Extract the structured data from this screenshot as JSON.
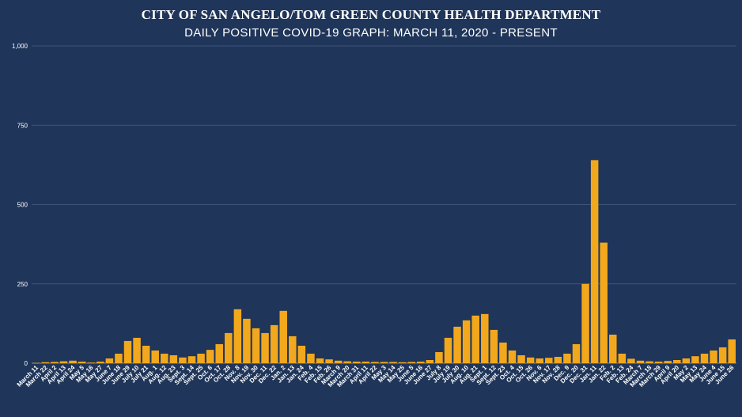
{
  "chart_data": {
    "type": "bar",
    "title": "CITY OF SAN ANGELO/TOM GREEN COUNTY HEALTH DEPARTMENT",
    "subtitle": "DAILY POSITIVE COVID-19 GRAPH: MARCH 11, 2020 - PRESENT",
    "xlabel": "",
    "ylabel": "",
    "ylim": [
      0,
      1000
    ],
    "yticks": [
      0,
      250,
      500,
      750,
      1000
    ],
    "ytick_labels": [
      "0",
      "250",
      "500",
      "750",
      "1,000"
    ],
    "grid": true,
    "legend": "none",
    "bar_color": "#f2a81d",
    "background_color": "#1f3559",
    "categories": [
      "March 11",
      "March 22",
      "April 2",
      "April 13",
      "April 24",
      "May 5",
      "May 16",
      "May 27",
      "June 7",
      "June 18",
      "June 29",
      "July 10",
      "July 21",
      "Aug. 1",
      "Aug. 12",
      "Aug. 23",
      "Sept. 3",
      "Sept. 14",
      "Sept. 25",
      "Oct. 6",
      "Oct. 17",
      "Oct. 28",
      "Nov. 8",
      "Nov. 19",
      "Nov. 30",
      "Dec. 11",
      "Dec. 22",
      "Jan. 2",
      "Jan. 13",
      "Jan. 24",
      "Feb. 4",
      "Feb. 15",
      "Feb. 26",
      "March 9",
      "March 20",
      "March 31",
      "April 11",
      "April 22",
      "May 3",
      "May 14",
      "May 25",
      "June 5",
      "June 16",
      "June 27",
      "July 8",
      "July 19",
      "July 30",
      "Aug. 10",
      "Aug. 21",
      "Sept. 1",
      "Sept. 12",
      "Sept. 23",
      "Oct. 4",
      "Oct. 15",
      "Oct. 26",
      "Nov. 6",
      "Nov. 17",
      "Nov. 28",
      "Dec. 9",
      "Dec. 20",
      "Dec. 31",
      "Jan. 11",
      "Jan. 22",
      "Feb. 2",
      "Feb. 13",
      "Feb. 24",
      "March 7",
      "March 18",
      "March 29",
      "April 9",
      "April 20",
      "May 2",
      "May 13",
      "May 24",
      "June 4",
      "June 15",
      "June 26"
    ],
    "values": [
      1,
      3,
      4,
      6,
      8,
      5,
      2,
      5,
      15,
      30,
      70,
      80,
      55,
      40,
      30,
      25,
      18,
      22,
      30,
      42,
      60,
      95,
      170,
      140,
      110,
      95,
      120,
      165,
      85,
      55,
      30,
      15,
      12,
      8,
      6,
      5,
      5,
      4,
      4,
      4,
      3,
      4,
      5,
      10,
      35,
      80,
      115,
      135,
      150,
      155,
      105,
      65,
      40,
      25,
      18,
      15,
      17,
      20,
      30,
      60,
      250,
      640,
      380,
      90,
      30,
      14,
      8,
      6,
      5,
      7,
      10,
      15,
      22,
      30,
      40,
      50,
      75
    ]
  }
}
